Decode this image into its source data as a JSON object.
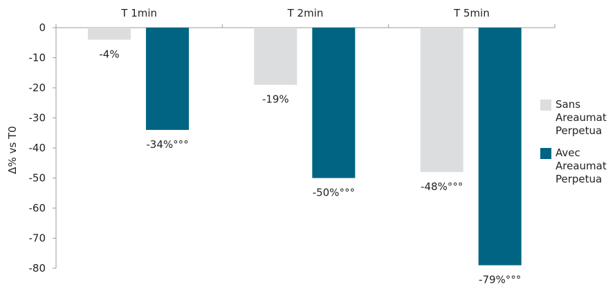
{
  "chart_data": {
    "type": "bar",
    "categories": [
      "T 1min",
      "T 2min",
      "T 5min"
    ],
    "ylabel": "Δ% vs T0",
    "ylim": [
      -80,
      0
    ],
    "yticks": [
      0,
      -10,
      -20,
      -30,
      -40,
      -50,
      -60,
      -70,
      -80
    ],
    "grid": false,
    "legend_position": "right",
    "series": [
      {
        "name": "Sans Areaumat Perpetua",
        "name_lines": [
          "Sans",
          "Areaumat",
          "Perpetua"
        ],
        "color": "#dcdddf",
        "values": [
          -4,
          -19,
          -48
        ],
        "labels": [
          "-4%",
          "-19%",
          "-48%°°°"
        ]
      },
      {
        "name": "Avec Areaumat Perpetua",
        "name_lines": [
          "Avec",
          "Areaumat",
          "Perpetua"
        ],
        "color": "#006482",
        "values": [
          -34,
          -50,
          -79
        ],
        "labels": [
          "-34%°°°",
          "-50%°°°",
          "-79%°°°"
        ]
      }
    ]
  }
}
